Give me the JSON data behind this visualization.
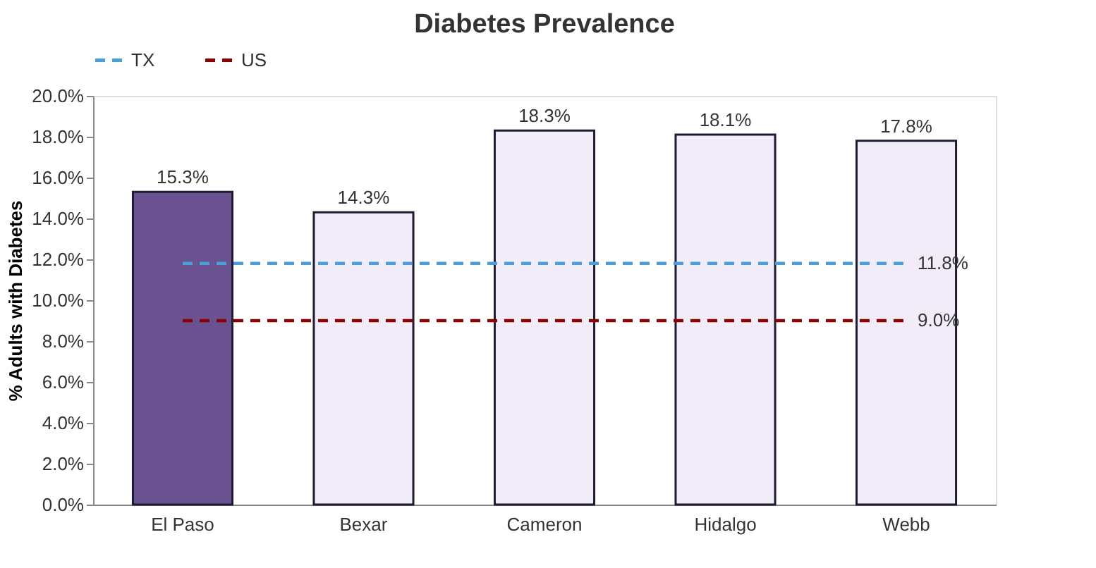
{
  "chart_data": {
    "type": "bar",
    "title": "Diabetes Prevalence",
    "ylabel": "% Adults with Diabetes",
    "categories": [
      "El Paso",
      "Bexar",
      "Cameron",
      "Hidalgo",
      "Webb"
    ],
    "values": [
      15.3,
      14.3,
      18.3,
      18.1,
      17.8
    ],
    "colors": [
      "#6a5190",
      "#f1ecf8",
      "#f1ecf8",
      "#f1ecf8",
      "#f1ecf8"
    ],
    "value_labels": [
      "15.3%",
      "14.3%",
      "18.3%",
      "18.1%",
      "17.8%"
    ],
    "series": [
      {
        "name": "TX",
        "type": "line",
        "color": "#4a9fd8",
        "line_style": "dashed",
        "values": [
          11.8,
          11.8,
          11.8,
          11.8,
          11.8
        ],
        "value_labels": [
          null,
          null,
          null,
          null,
          "11.8%"
        ]
      },
      {
        "name": "US",
        "type": "line",
        "color": "#8b0000",
        "line_style": "dashed",
        "values": [
          9.0,
          9.0,
          9.0,
          9.0,
          9.0
        ],
        "value_labels": [
          null,
          null,
          null,
          null,
          "9.0%"
        ]
      }
    ],
    "ylim": [
      0,
      20
    ],
    "yticks": [
      {
        "value": 0,
        "label": "0.0%"
      },
      {
        "value": 2,
        "label": "2.0%"
      },
      {
        "value": 4,
        "label": "4.0%"
      },
      {
        "value": 6,
        "label": "6.0%"
      },
      {
        "value": 8,
        "label": "8.0%"
      },
      {
        "value": 10,
        "label": "10.0%"
      },
      {
        "value": 12,
        "label": "12.0%"
      },
      {
        "value": 14,
        "label": "14.0%"
      },
      {
        "value": 16,
        "label": "16.0%"
      },
      {
        "value": 18,
        "label": "18.0%"
      },
      {
        "value": 20,
        "label": "20.0%"
      }
    ],
    "grid": false,
    "legend": "top"
  }
}
